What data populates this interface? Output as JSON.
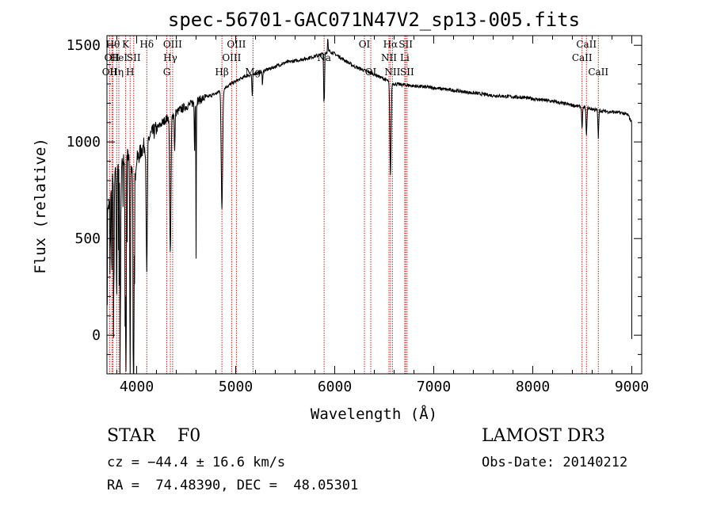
{
  "chart_data": {
    "type": "line",
    "title": "spec-56701-GAC071N47V2_sp13-005.fits",
    "xlabel": "Wavelength (Å)",
    "ylabel": "Flux (relative)",
    "xlim": [
      3700,
      9100
    ],
    "ylim": [
      -200,
      1550
    ],
    "x_ticks": [
      4000,
      5000,
      6000,
      7000,
      8000,
      9000
    ],
    "x_tick_labels": [
      "4000",
      "5000",
      "6000",
      "7000",
      "8000",
      "9000"
    ],
    "y_ticks": [
      0,
      500,
      1000,
      1500
    ],
    "y_tick_labels": [
      "0",
      "500",
      "1000",
      "1500"
    ],
    "grid": false,
    "series": [
      {
        "name": "flux",
        "continuum": {
          "x": [
            3700,
            3760,
            3820,
            3900,
            3960,
            4050,
            4150,
            4300,
            4450,
            4600,
            4800,
            4950,
            5100,
            5300,
            5500,
            5700,
            5850,
            5950,
            6050,
            6200,
            6400,
            6600,
            6800,
            7000,
            7300,
            7600,
            7900,
            8200,
            8500,
            8700,
            8900,
            8960,
            9000
          ],
          "y": [
            600,
            850,
            900,
            940,
            860,
            960,
            1040,
            1120,
            1170,
            1210,
            1250,
            1300,
            1340,
            1370,
            1410,
            1430,
            1450,
            1470,
            1440,
            1390,
            1350,
            1300,
            1290,
            1280,
            1260,
            1240,
            1230,
            1210,
            1180,
            1160,
            1150,
            1140,
            1100
          ]
        },
        "absorption_lines": [
          {
            "x": 3734,
            "depth": 350,
            "width": 4
          },
          {
            "x": 3750,
            "depth": 500,
            "width": 4
          },
          {
            "x": 3770,
            "depth": 600,
            "width": 5
          },
          {
            "x": 3798,
            "depth": 700,
            "width": 5
          },
          {
            "x": 3835,
            "depth": 850,
            "width": 6
          },
          {
            "x": 3889,
            "depth": 900,
            "width": 7
          },
          {
            "x": 3934,
            "depth": 1150,
            "width": 5
          },
          {
            "x": 3970,
            "depth": 1050,
            "width": 7
          },
          {
            "x": 4102,
            "depth": 700,
            "width": 8
          },
          {
            "x": 4340,
            "depth": 720,
            "width": 9
          },
          {
            "x": 4384,
            "depth": 200,
            "width": 5
          },
          {
            "x": 4584,
            "depth": 250,
            "width": 4
          },
          {
            "x": 4600,
            "depth": 800,
            "width": 3
          },
          {
            "x": 4861,
            "depth": 620,
            "width": 10
          },
          {
            "x": 5167,
            "depth": 120,
            "width": 5
          },
          {
            "x": 5270,
            "depth": 80,
            "width": 4
          },
          {
            "x": 5890,
            "depth": 220,
            "width": 4
          },
          {
            "x": 5896,
            "depth": 200,
            "width": 4
          },
          {
            "x": 6563,
            "depth": 480,
            "width": 9
          },
          {
            "x": 8498,
            "depth": 110,
            "width": 6
          },
          {
            "x": 8542,
            "depth": 150,
            "width": 6
          },
          {
            "x": 8662,
            "depth": 140,
            "width": 6
          }
        ],
        "emission_spikes": [
          {
            "x": 5930,
            "height": 70
          }
        ],
        "end_drop": {
          "x": 9000,
          "value": -20
        }
      }
    ],
    "spectral_lines": [
      {
        "x": 3727,
        "labels": [
          "OII"
        ],
        "row": 2
      },
      {
        "x": 3750,
        "labels": [
          "OII"
        ],
        "row": 1
      },
      {
        "x": 3760,
        "labels": [
          "Hθ"
        ],
        "row": 0
      },
      {
        "x": 3798,
        "labels": [
          "Hη"
        ],
        "row": 2
      },
      {
        "x": 3820,
        "labels": [
          "HeI"
        ],
        "row": 1
      },
      {
        "x": 3889,
        "labels": [
          "K"
        ],
        "row": 0
      },
      {
        "x": 3934,
        "labels": [
          "H"
        ],
        "row": 2
      },
      {
        "x": 3970,
        "labels": [
          "SII"
        ],
        "row": 1
      },
      {
        "x": 4102,
        "labels": [
          "Hδ"
        ],
        "row": 0
      },
      {
        "x": 4304,
        "labels": [
          "G"
        ],
        "row": 2
      },
      {
        "x": 4340,
        "labels": [
          "Hγ"
        ],
        "row": 1
      },
      {
        "x": 4363,
        "labels": [
          "OIII"
        ],
        "row": 0
      },
      {
        "x": 4861,
        "labels": [
          "Hβ"
        ],
        "row": 2
      },
      {
        "x": 4959,
        "labels": [
          "OIII"
        ],
        "row": 1
      },
      {
        "x": 5007,
        "labels": [
          "OIII"
        ],
        "row": 0
      },
      {
        "x": 5175,
        "labels": [
          "Mg"
        ],
        "row": 2
      },
      {
        "x": 5893,
        "labels": [
          "Na"
        ],
        "row": 1
      },
      {
        "x": 6300,
        "labels": [
          "OI"
        ],
        "row": 0
      },
      {
        "x": 6364,
        "labels": [
          "OI"
        ],
        "row": 2
      },
      {
        "x": 6548,
        "labels": [
          "NII"
        ],
        "row": 1
      },
      {
        "x": 6563,
        "labels": [
          "Hα"
        ],
        "row": 0
      },
      {
        "x": 6583,
        "labels": [
          "NII"
        ],
        "row": 2
      },
      {
        "x": 6707,
        "labels": [
          "Li"
        ],
        "row": 1
      },
      {
        "x": 6717,
        "labels": [
          "SII"
        ],
        "row": 0
      },
      {
        "x": 6731,
        "labels": [
          "SII"
        ],
        "row": 2
      },
      {
        "x": 8498,
        "labels": [
          "CaII"
        ],
        "row": 1
      },
      {
        "x": 8542,
        "labels": [
          "CaII"
        ],
        "row": 0
      },
      {
        "x": 8662,
        "labels": [
          "CaII"
        ],
        "row": 2
      }
    ],
    "axis_color": "#000000",
    "line_color": "#000000",
    "marker_color": "#cc2222"
  },
  "info": {
    "object_class": "STAR",
    "subclass": "F0",
    "survey": "LAMOST DR3",
    "cz_text": "cz = −44.4 ± 16.6 km/s",
    "obs_date_text": "Obs-Date: 20140212",
    "radec_text": "RA =  74.48390, DEC =  48.05301"
  }
}
